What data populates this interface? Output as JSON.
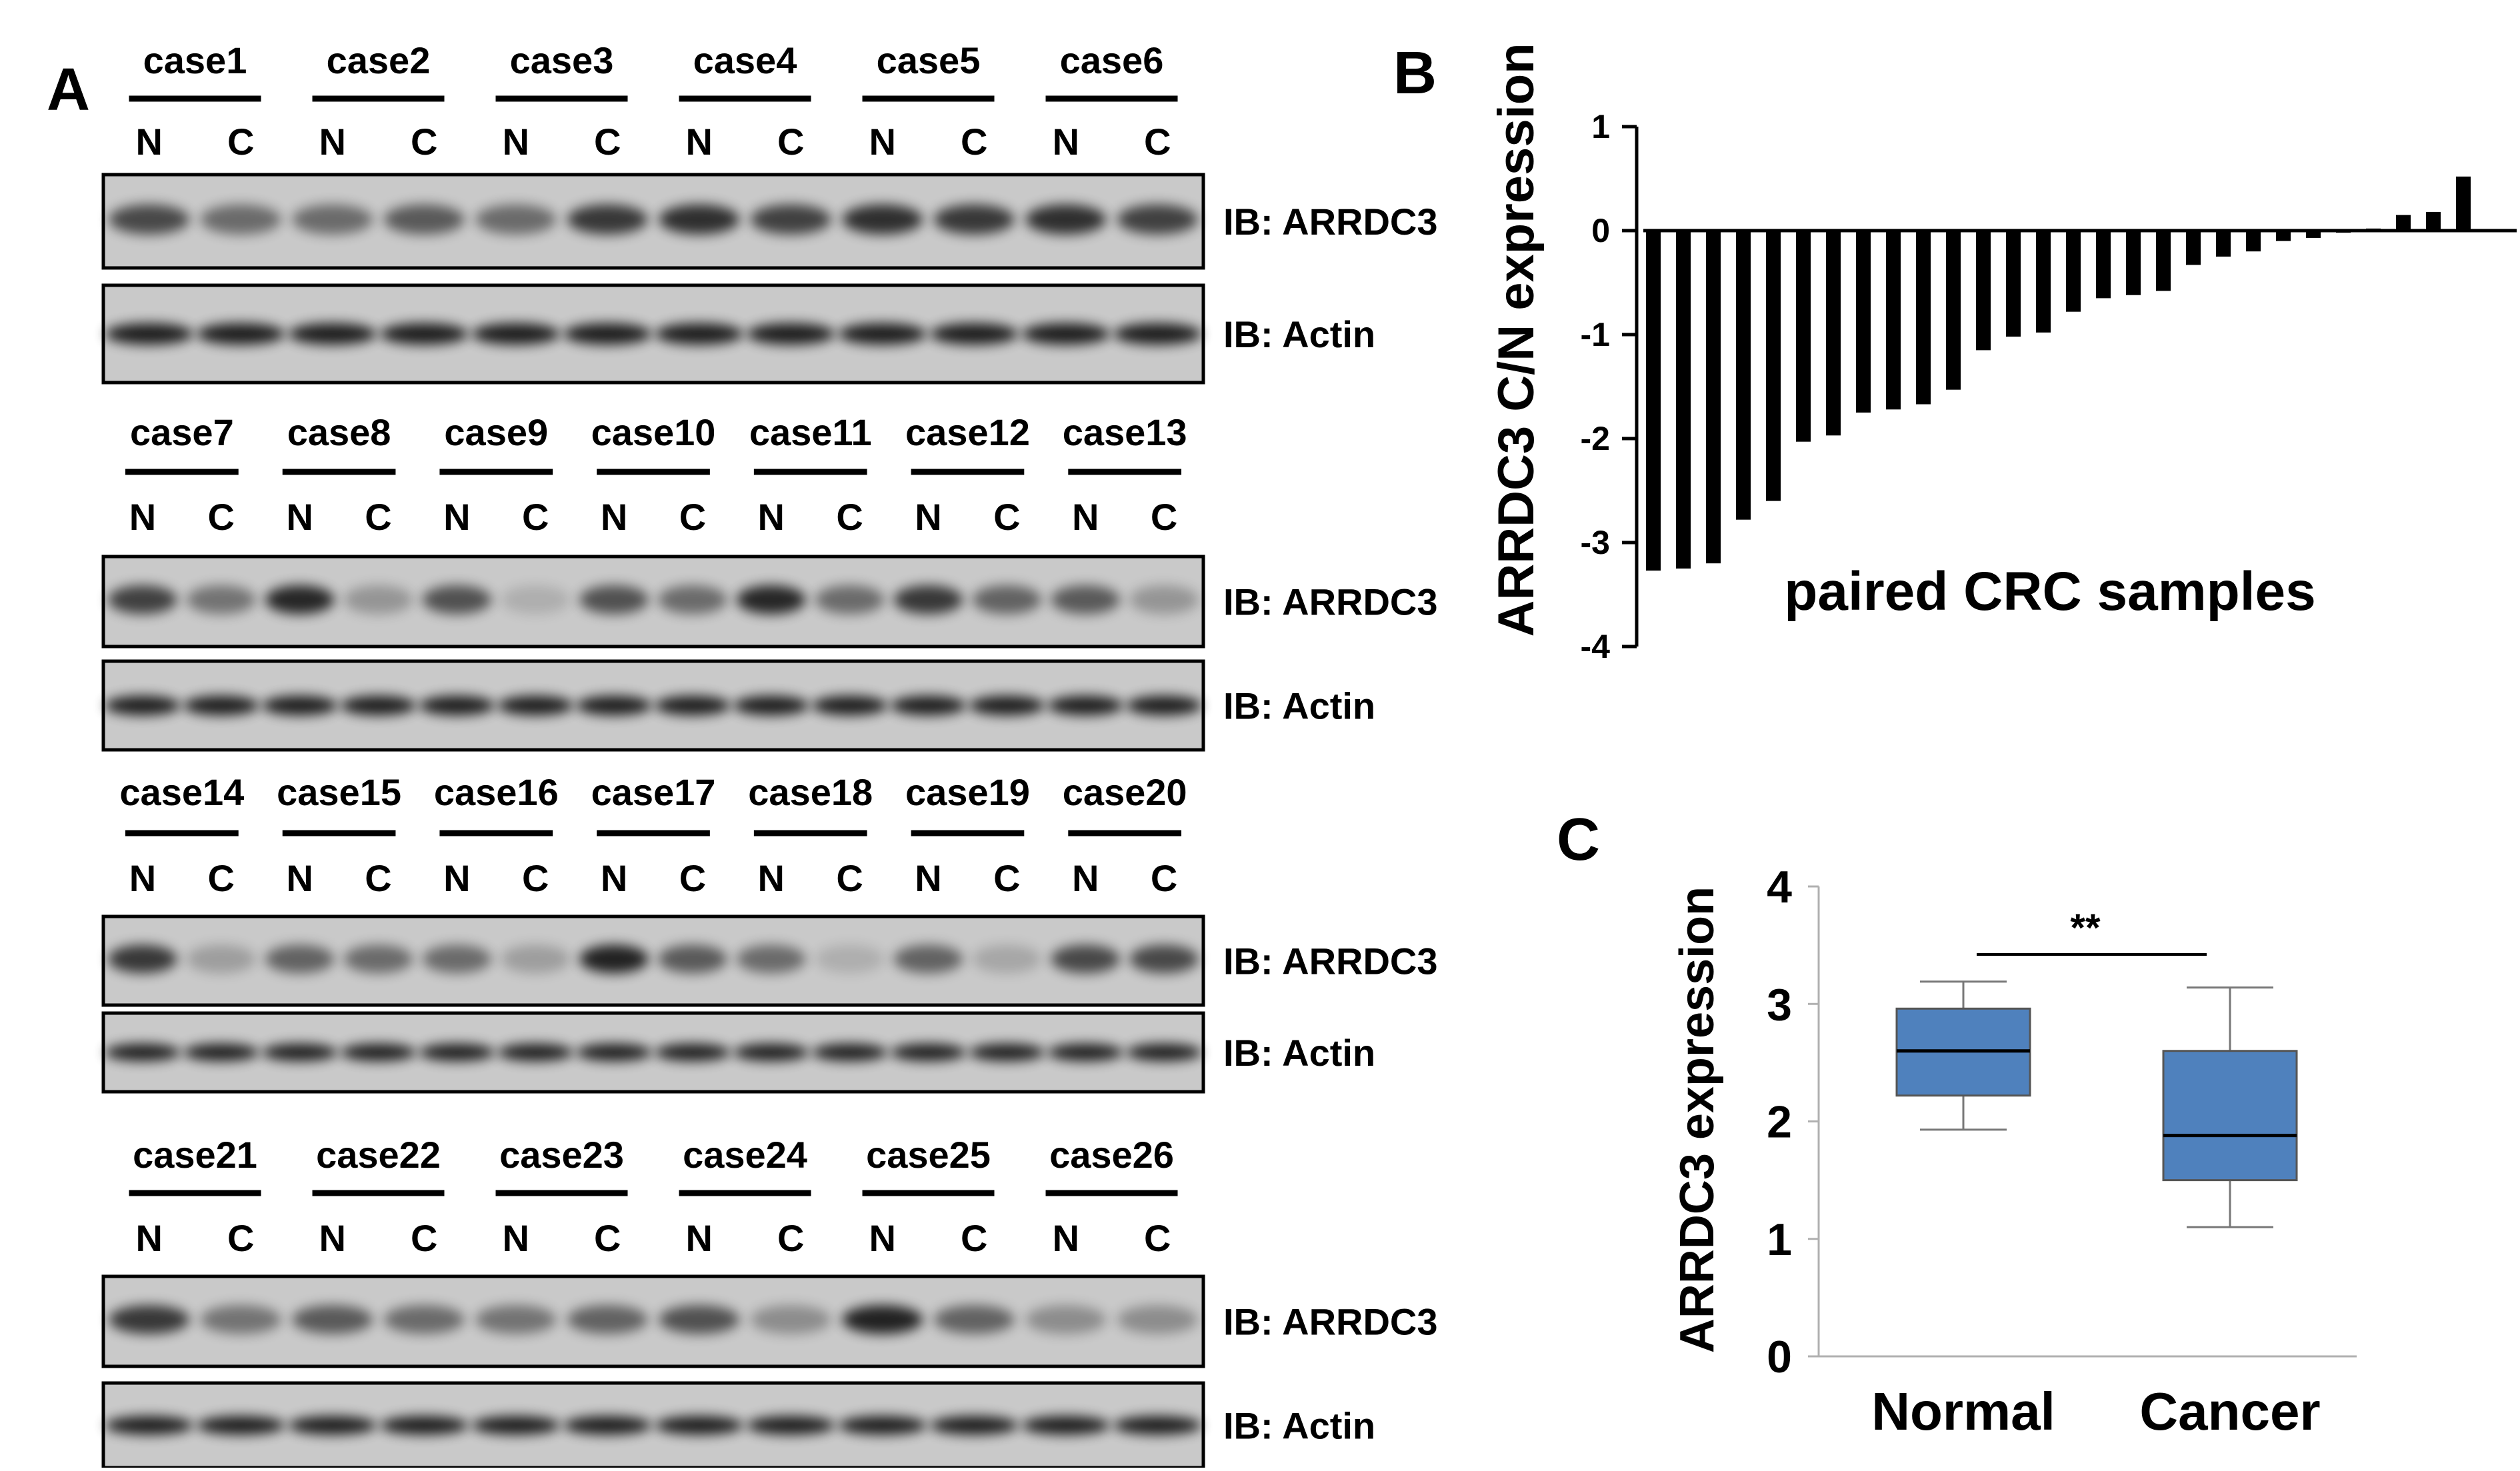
{
  "panelA": {
    "label": "A",
    "rows": [
      {
        "cases": [
          "case1",
          "case2",
          "case3",
          "case4",
          "case5",
          "case6"
        ]
      },
      {
        "cases": [
          "case7",
          "case8",
          "case9",
          "case10",
          "case11",
          "case12",
          "case13"
        ]
      },
      {
        "cases": [
          "case14",
          "case15",
          "case16",
          "case17",
          "case18",
          "case19",
          "case20"
        ]
      },
      {
        "cases": [
          "case21",
          "case22",
          "case23",
          "case24",
          "case25",
          "case26"
        ]
      }
    ],
    "lane_normal": "N",
    "lane_cancer": "C",
    "blot_top_label": "IB: ARRDC3",
    "blot_bottom_label": "IB: Actin"
  },
  "chart_data": [
    {
      "panel": "B",
      "type": "bar",
      "title": "",
      "xlabel": "paired CRC samples",
      "ylabel": "ARRDC3 C/N expression",
      "ylim": [
        -4,
        1
      ],
      "yticks": [
        "1",
        "0",
        "-1",
        "-2",
        "-3",
        "-4"
      ],
      "values": [
        -3.27,
        -3.25,
        -3.2,
        -2.78,
        -2.6,
        -2.03,
        -1.97,
        -1.75,
        -1.72,
        -1.67,
        -1.53,
        -1.15,
        -1.02,
        -0.98,
        -0.78,
        -0.65,
        -0.62,
        -0.58,
        -0.33,
        -0.25,
        -0.2,
        -0.1,
        -0.07,
        -0.02,
        0.02,
        0.15,
        0.18,
        0.52
      ]
    },
    {
      "panel": "C",
      "type": "box",
      "xlabel": "",
      "ylabel": "ARRDC3 expression",
      "ylim": [
        0,
        4
      ],
      "yticks": [
        "0",
        "1",
        "2",
        "3",
        "4"
      ],
      "categories": [
        "Normal",
        "Cancer"
      ],
      "boxes": [
        {
          "name": "Normal",
          "whisker_low": 1.93,
          "q1": 2.22,
          "median": 2.6,
          "q3": 2.96,
          "whisker_high": 3.19
        },
        {
          "name": "Cancer",
          "whisker_low": 1.1,
          "q1": 1.5,
          "median": 1.88,
          "q3": 2.6,
          "whisker_high": 3.14
        }
      ],
      "significance": "**",
      "box_color": "#4f81bd"
    }
  ]
}
